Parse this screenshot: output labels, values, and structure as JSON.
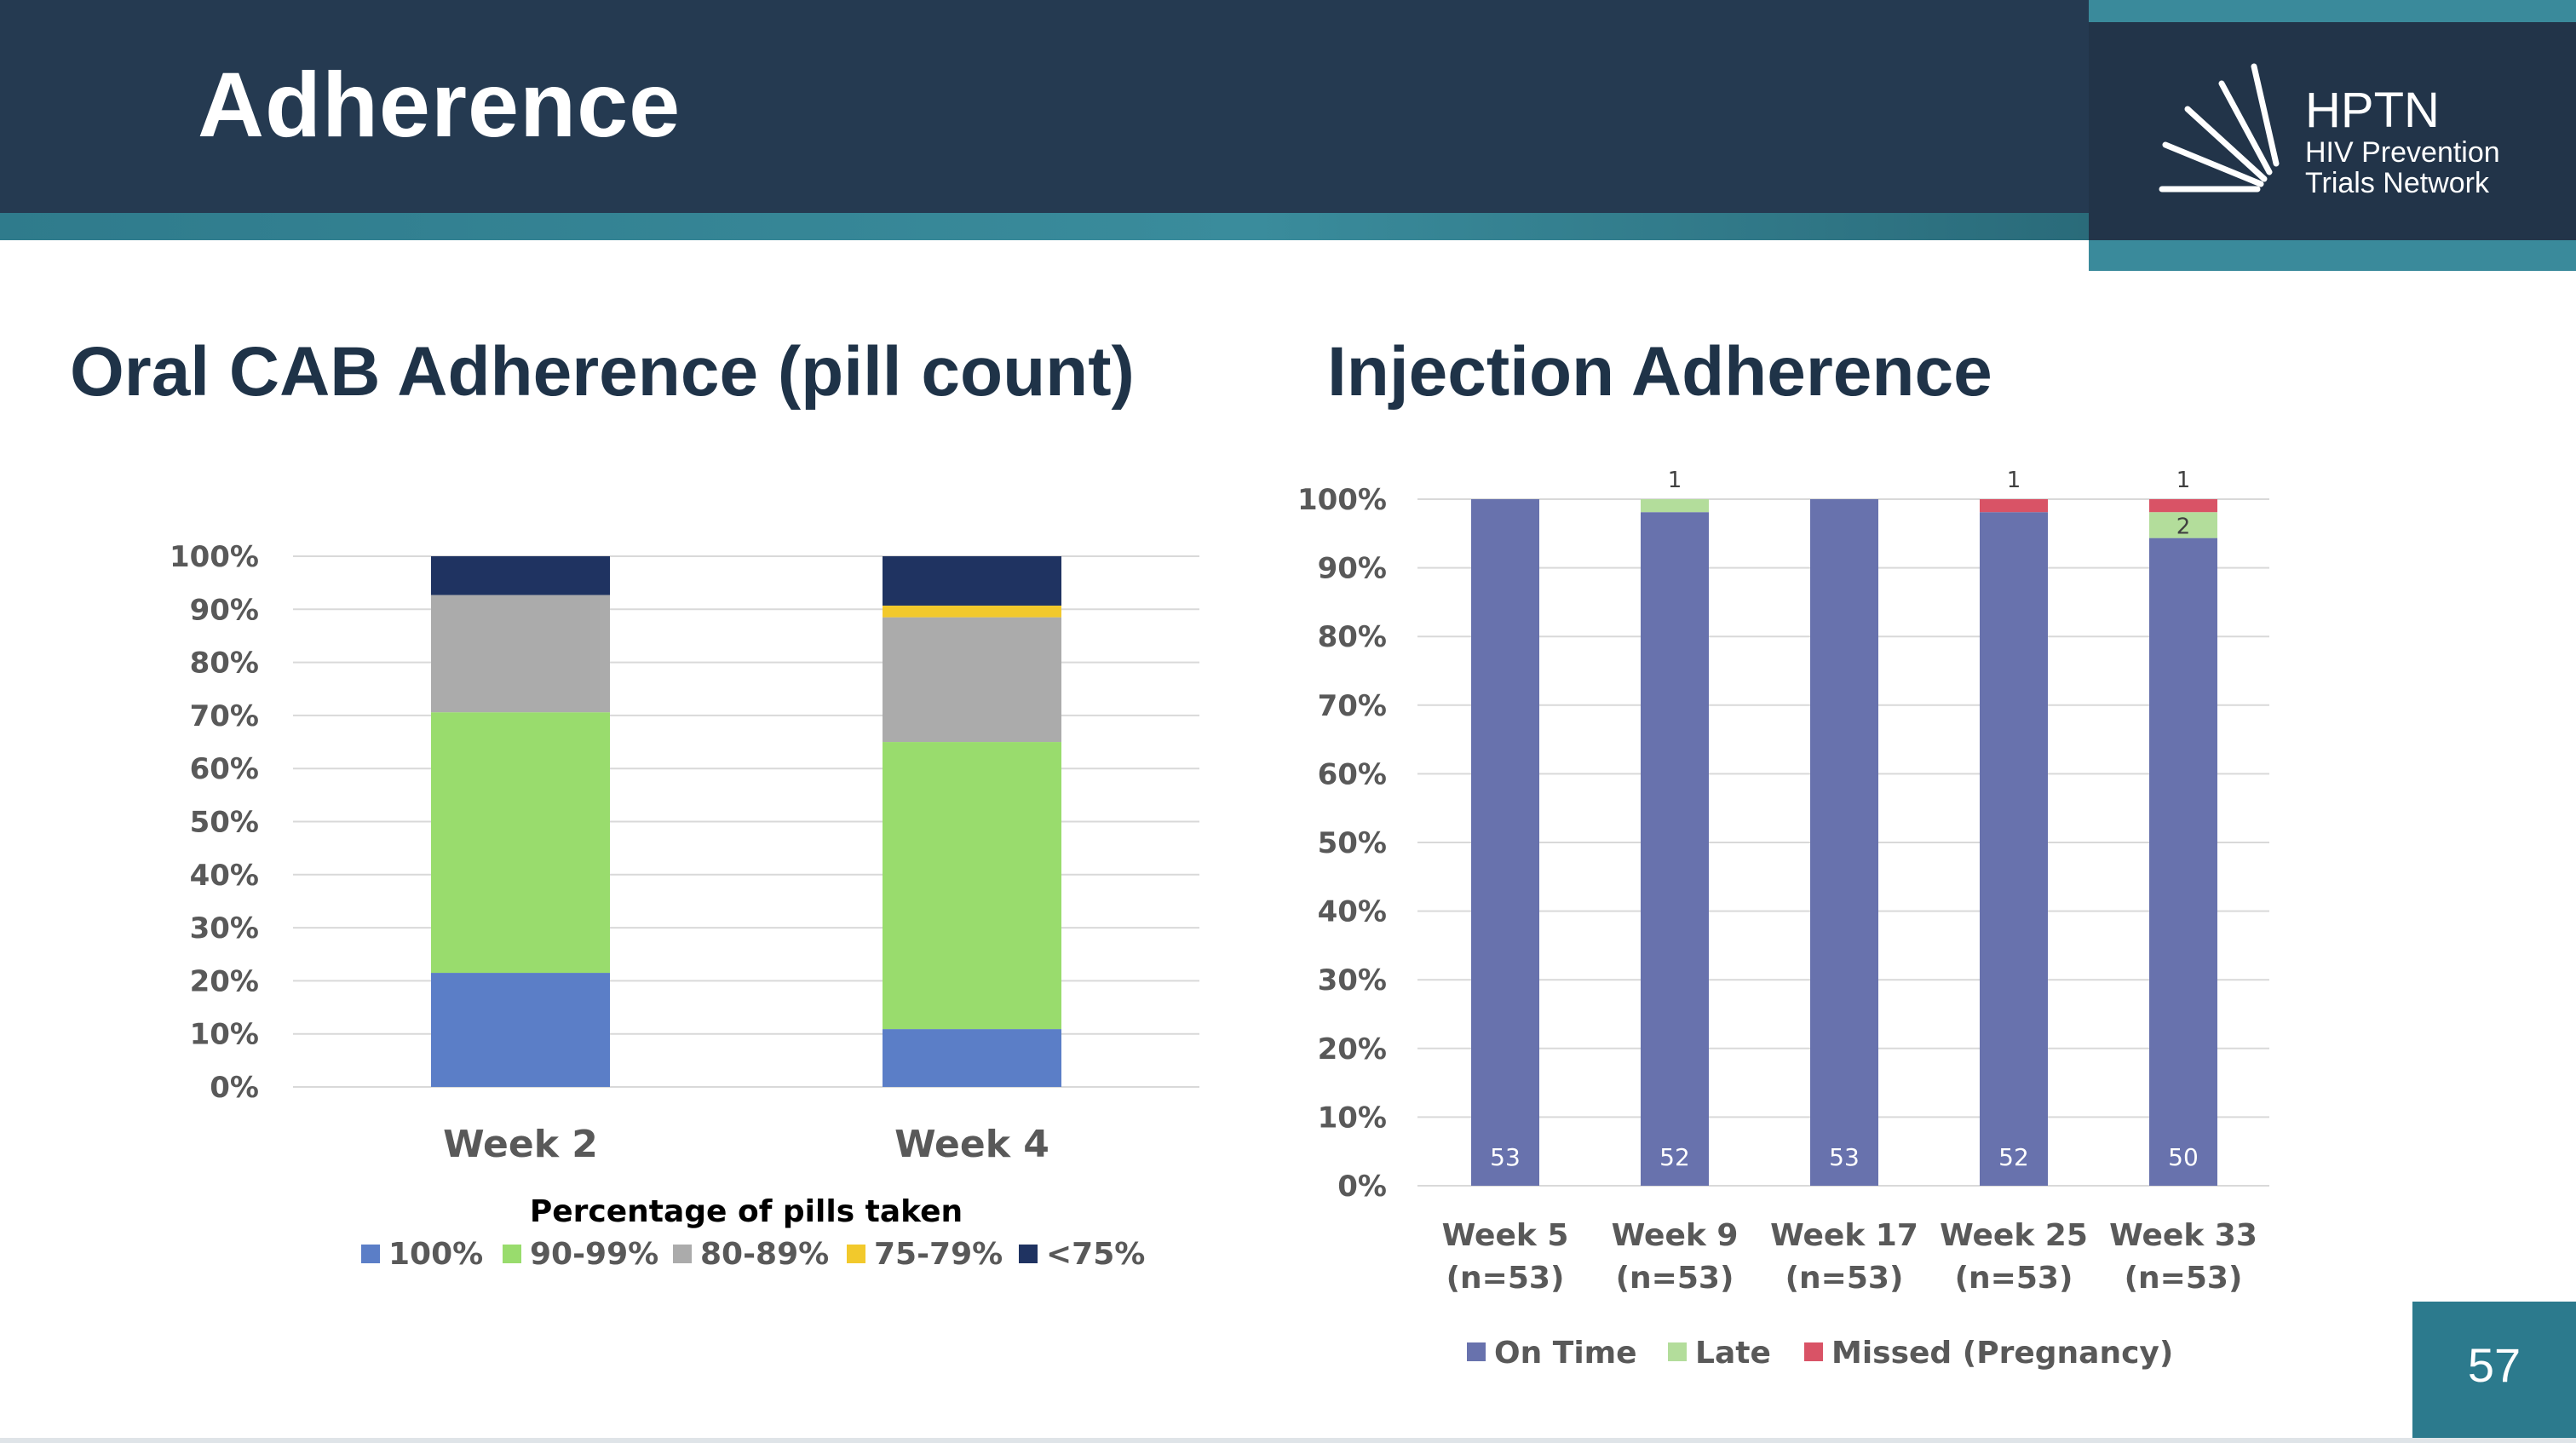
{
  "slide": {
    "title": "Adherence",
    "page_number": "57"
  },
  "logo": {
    "name": "HPTN",
    "line1": "HIV Prevention",
    "line2": "Trials Network"
  },
  "colors": {
    "header": "#253a51",
    "accent": "#2f7b8c"
  },
  "chart_data": [
    {
      "type": "bar",
      "stacked": true,
      "title": "Oral CAB Adherence (pill count)",
      "categories": [
        "Week 2",
        "Week 4"
      ],
      "series": [
        {
          "name": "100%",
          "color": "#5b7ec7",
          "values": [
            21.5,
            10.9
          ]
        },
        {
          "name": "90-99%",
          "color": "#99dc6d",
          "values": [
            49.1,
            54.1
          ]
        },
        {
          "name": "80-89%",
          "color": "#ababab",
          "values": [
            22.1,
            23.5
          ]
        },
        {
          "name": "75-79%",
          "color": "#f2c92c",
          "values": [
            0,
            2.2
          ]
        },
        {
          "name": "<75%",
          "color": "#1f3361",
          "values": [
            7.3,
            9.3
          ]
        }
      ],
      "ylim": [
        0,
        100
      ],
      "yticks": [
        "0%",
        "10%",
        "20%",
        "30%",
        "40%",
        "50%",
        "60%",
        "70%",
        "80%",
        "90%",
        "100%"
      ],
      "legend_title": "Percentage of pills taken",
      "legend_position": "bottom",
      "grid": true
    },
    {
      "type": "bar",
      "stacked": true,
      "title": "Injection Adherence",
      "categories": [
        "Week 5",
        "Week 9",
        "Week 17",
        "Week 25",
        "Week 33"
      ],
      "category_sublabels": [
        "(n=53)",
        "(n=53)",
        "(n=53)",
        "(n=53)",
        "(n=53)"
      ],
      "series": [
        {
          "name": "On Time",
          "color": "#6872ad",
          "values": [
            53,
            52,
            53,
            52,
            50
          ],
          "labels": [
            "53",
            "52",
            "53",
            "52",
            "50"
          ]
        },
        {
          "name": "Late",
          "color": "#b3dd9b",
          "values": [
            0,
            1,
            0,
            0,
            2
          ],
          "labels": [
            "",
            "1",
            "",
            "",
            "2"
          ]
        },
        {
          "name": "Missed (Pregnancy)",
          "color": "#d95366",
          "values": [
            0,
            0,
            0,
            1,
            1
          ],
          "labels": [
            "",
            "",
            "",
            "1",
            "1"
          ]
        }
      ],
      "total": 53,
      "ylim": [
        0,
        100
      ],
      "yticks": [
        "0%",
        "10%",
        "20%",
        "30%",
        "40%",
        "50%",
        "60%",
        "70%",
        "80%",
        "90%",
        "100%"
      ],
      "legend_position": "bottom",
      "grid": true
    }
  ]
}
